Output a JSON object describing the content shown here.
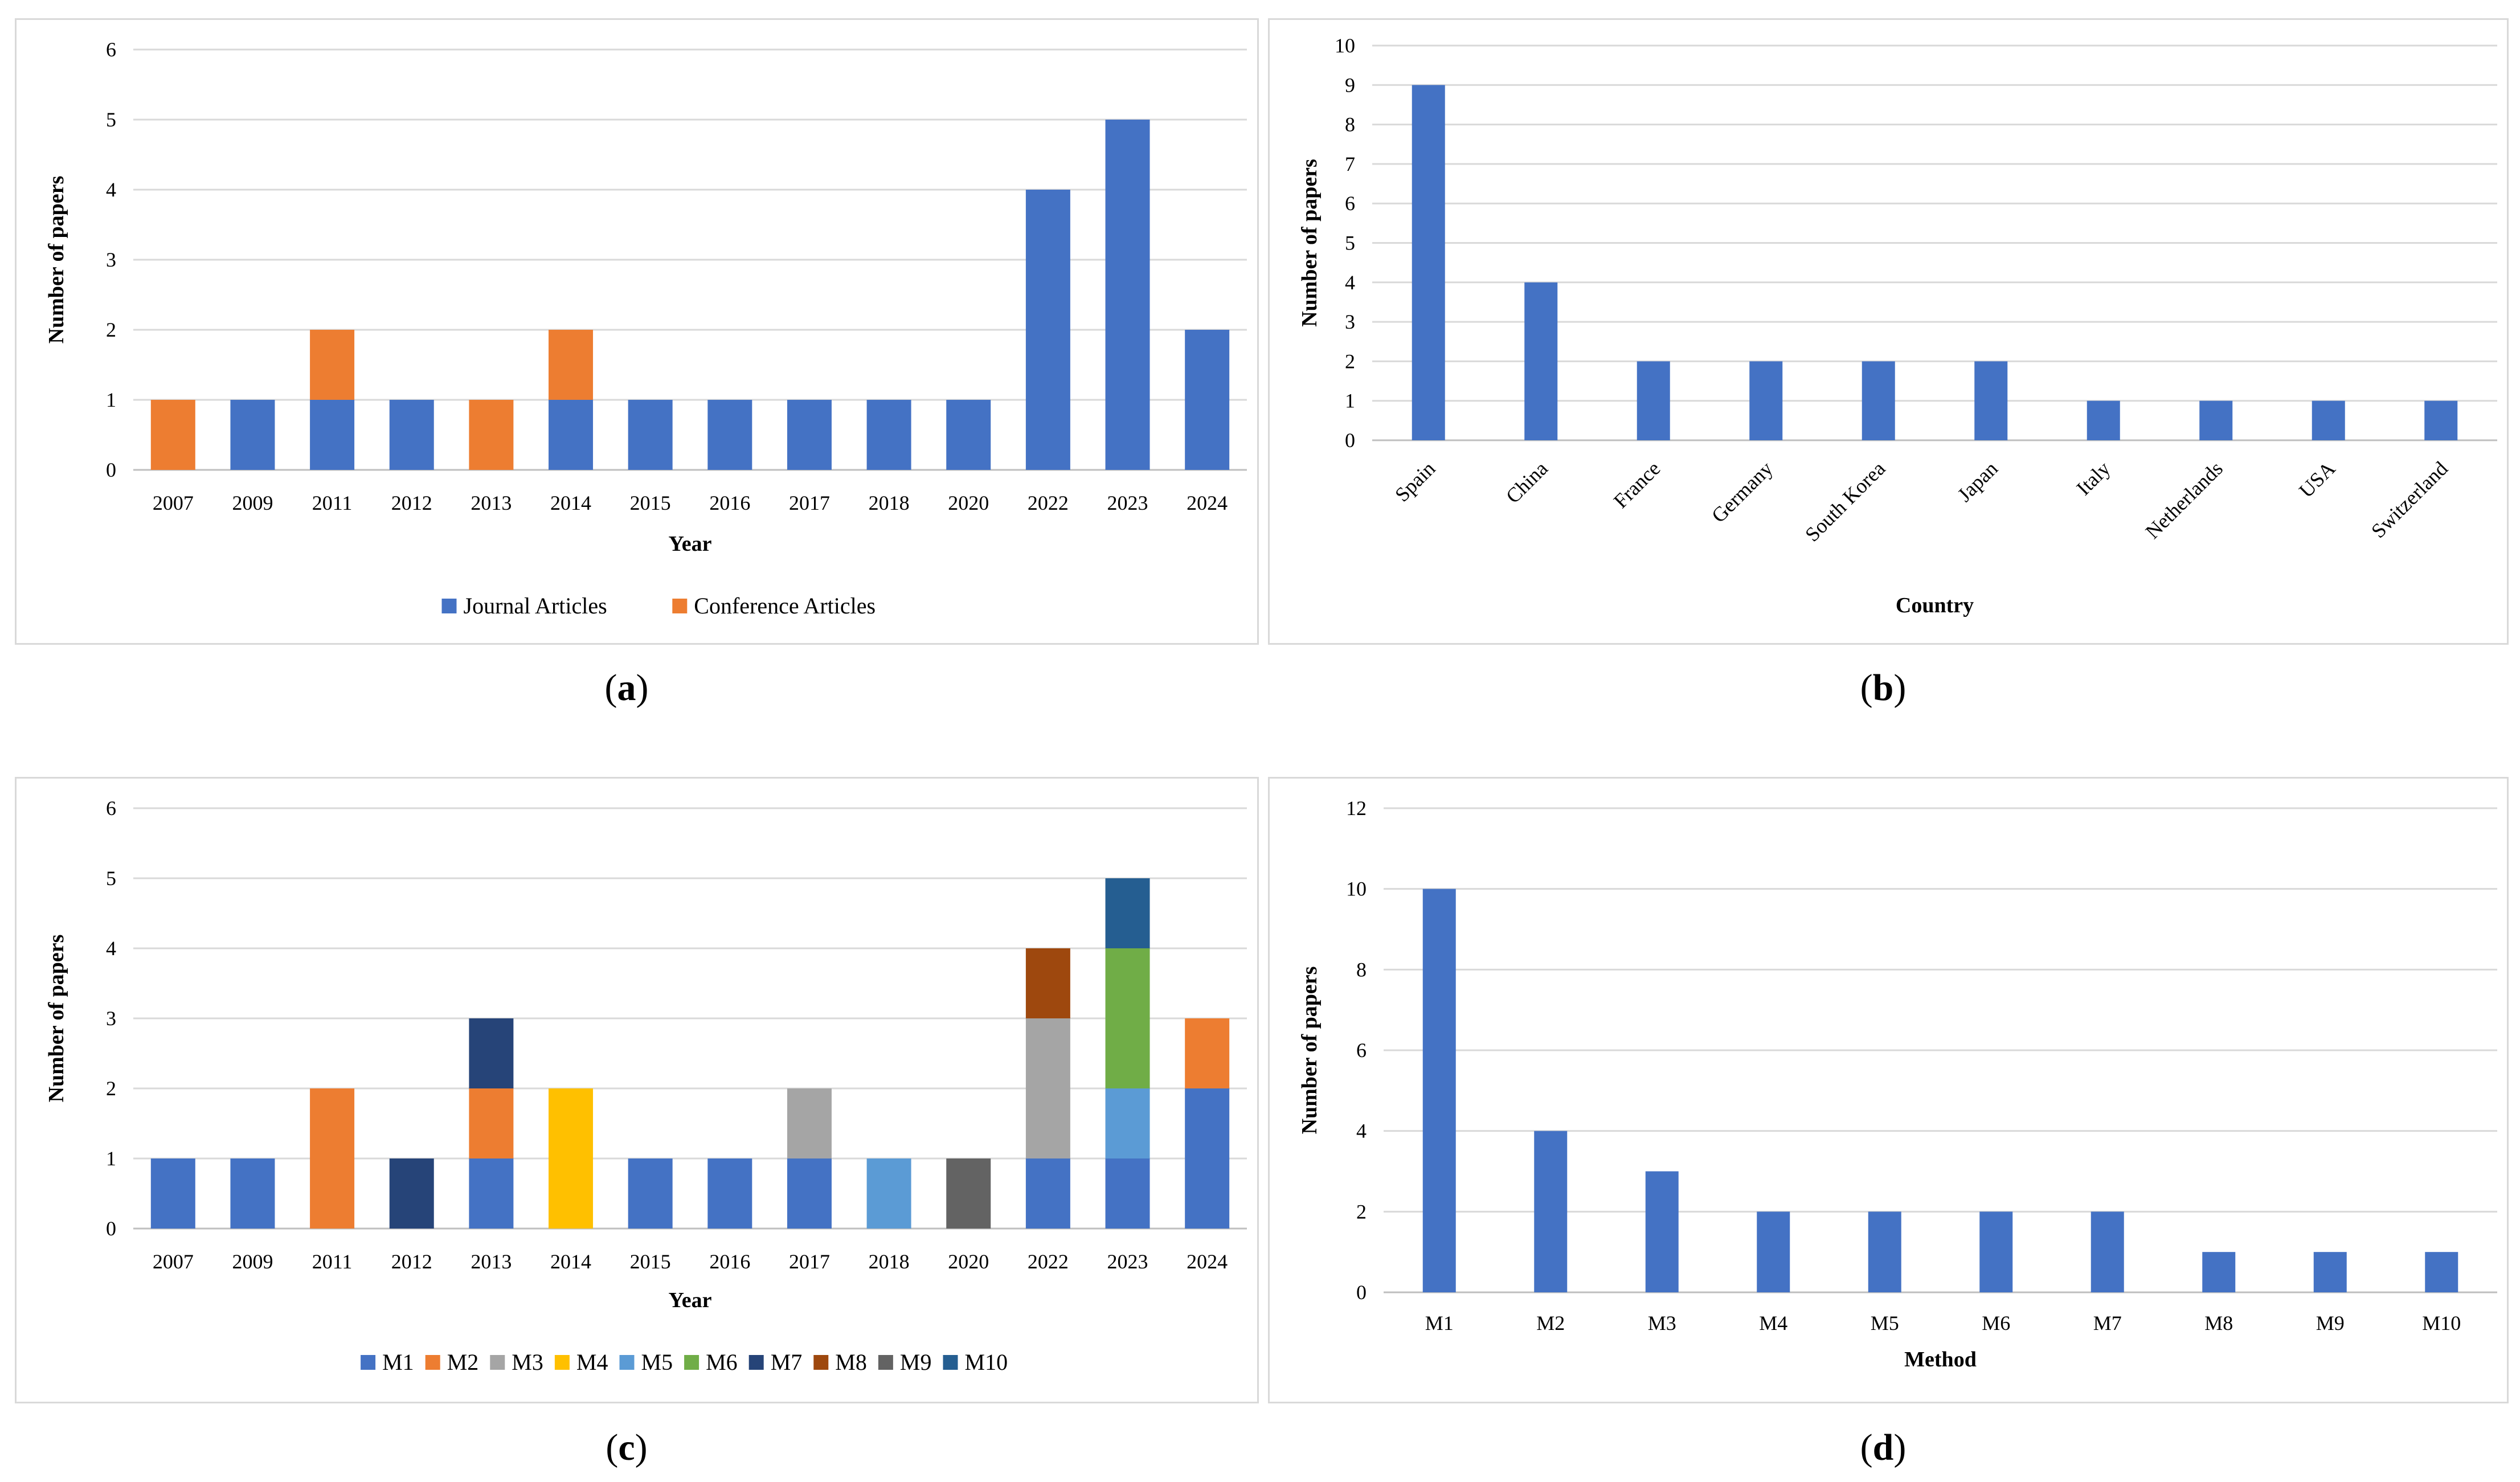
{
  "colors": {
    "M1": "#4472C4",
    "M2": "#ED7D31",
    "M3": "#A5A5A5",
    "M4": "#FFC000",
    "M5": "#5B9BD5",
    "M6": "#70AD47",
    "M7": "#264478",
    "M8": "#9E480E",
    "M9": "#636363",
    "M10": "#255E91",
    "journal": "#4472C4",
    "conference": "#ED7D31",
    "grid": "#d9d9d9",
    "axis": "#bfbfbf"
  },
  "chart_data": [
    {
      "id": "a",
      "type": "bar",
      "stacked": true,
      "caption_letter": "a",
      "categories": [
        "2007",
        "2009",
        "2011",
        "2012",
        "2013",
        "2014",
        "2015",
        "2016",
        "2017",
        "2018",
        "2020",
        "2022",
        "2023",
        "2024"
      ],
      "series": [
        {
          "name": "Journal Articles",
          "color_key": "journal",
          "values": [
            0,
            1,
            1,
            1,
            0,
            1,
            1,
            1,
            1,
            1,
            1,
            4,
            5,
            2
          ]
        },
        {
          "name": "Conference Articles",
          "color_key": "conference",
          "values": [
            1,
            0,
            1,
            0,
            1,
            1,
            0,
            0,
            0,
            0,
            0,
            0,
            0,
            0
          ]
        }
      ],
      "yticks": [
        "0",
        "1",
        "2",
        "3",
        "4",
        "5",
        "6"
      ],
      "ylim": [
        0,
        6
      ],
      "xlabel": "Year",
      "ylabel": "Number of papers",
      "legend": "bottom"
    },
    {
      "id": "b",
      "type": "bar",
      "caption_letter": "b",
      "categories": [
        "Spain",
        "China",
        "France",
        "Germany",
        "South Korea",
        "Japan",
        "Italy",
        "Netherlands",
        "USA",
        "Switzerland"
      ],
      "values": [
        9,
        4,
        2,
        2,
        2,
        2,
        1,
        1,
        1,
        1
      ],
      "color_key": "journal",
      "yticks": [
        "0",
        "1",
        "2",
        "3",
        "4",
        "5",
        "6",
        "7",
        "8",
        "9",
        "10"
      ],
      "ylim": [
        0,
        10
      ],
      "xlabel": "Country",
      "ylabel": "Number of papers"
    },
    {
      "id": "c",
      "type": "bar",
      "stacked": true,
      "caption_letter": "c",
      "categories": [
        "2007",
        "2009",
        "2011",
        "2012",
        "2013",
        "2014",
        "2015",
        "2016",
        "2017",
        "2018",
        "2020",
        "2022",
        "2023",
        "2024"
      ],
      "series": [
        {
          "name": "M1",
          "color_key": "M1",
          "values": [
            1,
            1,
            0,
            0,
            1,
            0,
            1,
            1,
            1,
            0,
            0,
            1,
            1,
            2
          ]
        },
        {
          "name": "M2",
          "color_key": "M2",
          "values": [
            0,
            0,
            2,
            0,
            1,
            0,
            0,
            0,
            0,
            0,
            0,
            0,
            0,
            1
          ]
        },
        {
          "name": "M3",
          "color_key": "M3",
          "values": [
            0,
            0,
            0,
            0,
            0,
            0,
            0,
            0,
            1,
            0,
            0,
            2,
            0,
            0
          ]
        },
        {
          "name": "M4",
          "color_key": "M4",
          "values": [
            0,
            0,
            0,
            0,
            0,
            2,
            0,
            0,
            0,
            0,
            0,
            0,
            0,
            0
          ]
        },
        {
          "name": "M5",
          "color_key": "M5",
          "values": [
            0,
            0,
            0,
            0,
            0,
            0,
            0,
            0,
            0,
            1,
            0,
            0,
            1,
            0
          ]
        },
        {
          "name": "M6",
          "color_key": "M6",
          "values": [
            0,
            0,
            0,
            0,
            0,
            0,
            0,
            0,
            0,
            0,
            0,
            0,
            2,
            0
          ]
        },
        {
          "name": "M7",
          "color_key": "M7",
          "values": [
            0,
            0,
            0,
            1,
            1,
            0,
            0,
            0,
            0,
            0,
            0,
            0,
            0,
            0
          ]
        },
        {
          "name": "M8",
          "color_key": "M8",
          "values": [
            0,
            0,
            0,
            0,
            0,
            0,
            0,
            0,
            0,
            0,
            0,
            1,
            0,
            0
          ]
        },
        {
          "name": "M9",
          "color_key": "M9",
          "values": [
            0,
            0,
            0,
            0,
            0,
            0,
            0,
            0,
            0,
            0,
            1,
            0,
            0,
            0
          ]
        },
        {
          "name": "M10",
          "color_key": "M10",
          "values": [
            0,
            0,
            0,
            0,
            0,
            0,
            0,
            0,
            0,
            0,
            0,
            0,
            1,
            0
          ]
        }
      ],
      "yticks": [
        "0",
        "1",
        "2",
        "3",
        "4",
        "5",
        "6"
      ],
      "ylim": [
        0,
        6
      ],
      "xlabel": "Year",
      "ylabel": "Number of papers",
      "legend": "bottom"
    },
    {
      "id": "d",
      "type": "bar",
      "caption_letter": "d",
      "categories": [
        "M1",
        "M2",
        "M3",
        "M4",
        "M5",
        "M6",
        "M7",
        "M8",
        "M9",
        "M10"
      ],
      "values": [
        10,
        4,
        3,
        2,
        2,
        2,
        2,
        1,
        1,
        1
      ],
      "color_key": "journal",
      "yticks": [
        "0",
        "2",
        "4",
        "6",
        "8",
        "10",
        "12"
      ],
      "ylim": [
        0,
        12
      ],
      "xlabel": "Method",
      "ylabel": "Number of papers"
    }
  ]
}
